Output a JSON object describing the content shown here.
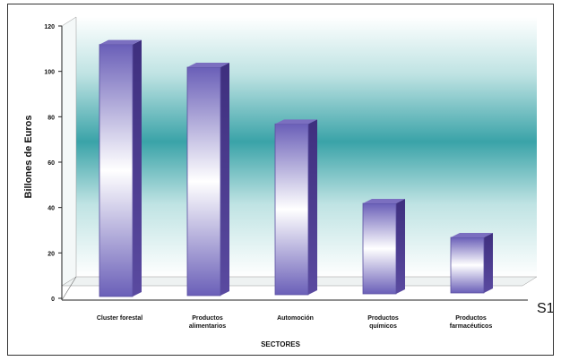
{
  "chart_data": {
    "type": "bar",
    "categories": [
      [
        "Cluster forestal"
      ],
      [
        "Productos",
        "alimentarios"
      ],
      [
        "Automoción"
      ],
      [
        "Productos",
        "químicos"
      ],
      [
        "Productos",
        "farmacéuticos"
      ]
    ],
    "values": [
      115,
      105,
      80,
      45,
      30
    ],
    "xlabel": "SECTORES",
    "ylabel": "Billones de Euros",
    "ylim": [
      0,
      120
    ],
    "yticks": [
      "0",
      "20",
      "40",
      "60",
      "80",
      "100",
      "120"
    ],
    "series_label": "S1",
    "grid": false,
    "colors": {
      "bar_edge": "#5a4fa0",
      "bar_side": "#4a3a8a",
      "bar_top": "#7b6fc0",
      "wall_teal": "#3aa3a8"
    }
  }
}
